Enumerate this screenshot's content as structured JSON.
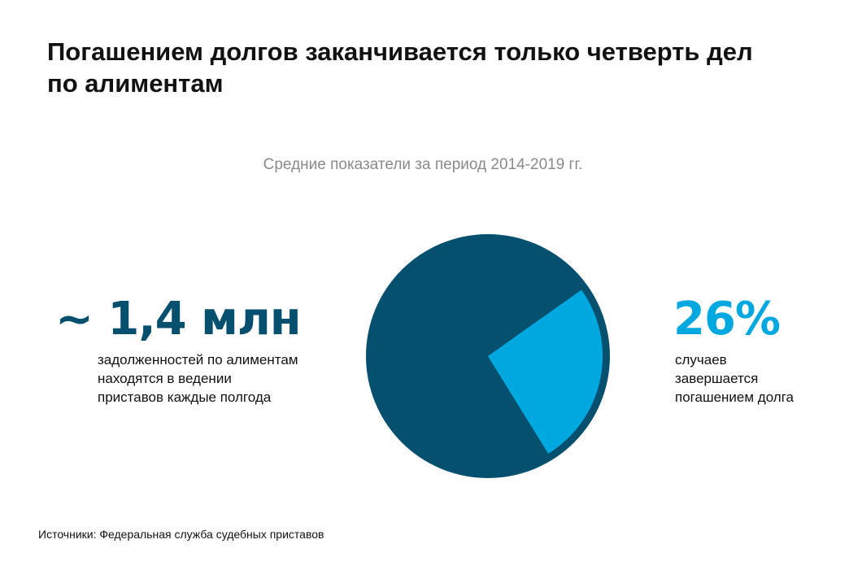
{
  "header": {
    "title_lines": [
      "Погашением долгов заканчивается только четверть дел",
      "по алиментам"
    ],
    "subtitle": "Средние показатели за период 2014-2019 гг."
  },
  "left": {
    "stat": "~ 1,4 млн",
    "desc_lines": [
      "задолженностей по алиментам",
      "находятся в ведении",
      "приставов каждые полгода"
    ]
  },
  "right": {
    "stat": "26%",
    "desc_lines": [
      "случаев",
      "завершается",
      "погашением долга"
    ]
  },
  "footer": {
    "source": "Источники: Федеральная служба судебных приставов"
  },
  "colors": {
    "primary": "#05506f",
    "accent": "#00a8e0",
    "stat_left": "#05506f",
    "stat_right": "#00a8e0"
  },
  "chart_data": {
    "type": "pie",
    "title": "",
    "slices": [
      {
        "value": 74,
        "color": "#05506f"
      },
      {
        "value": 26,
        "color": "#00a8e0"
      }
    ]
  }
}
